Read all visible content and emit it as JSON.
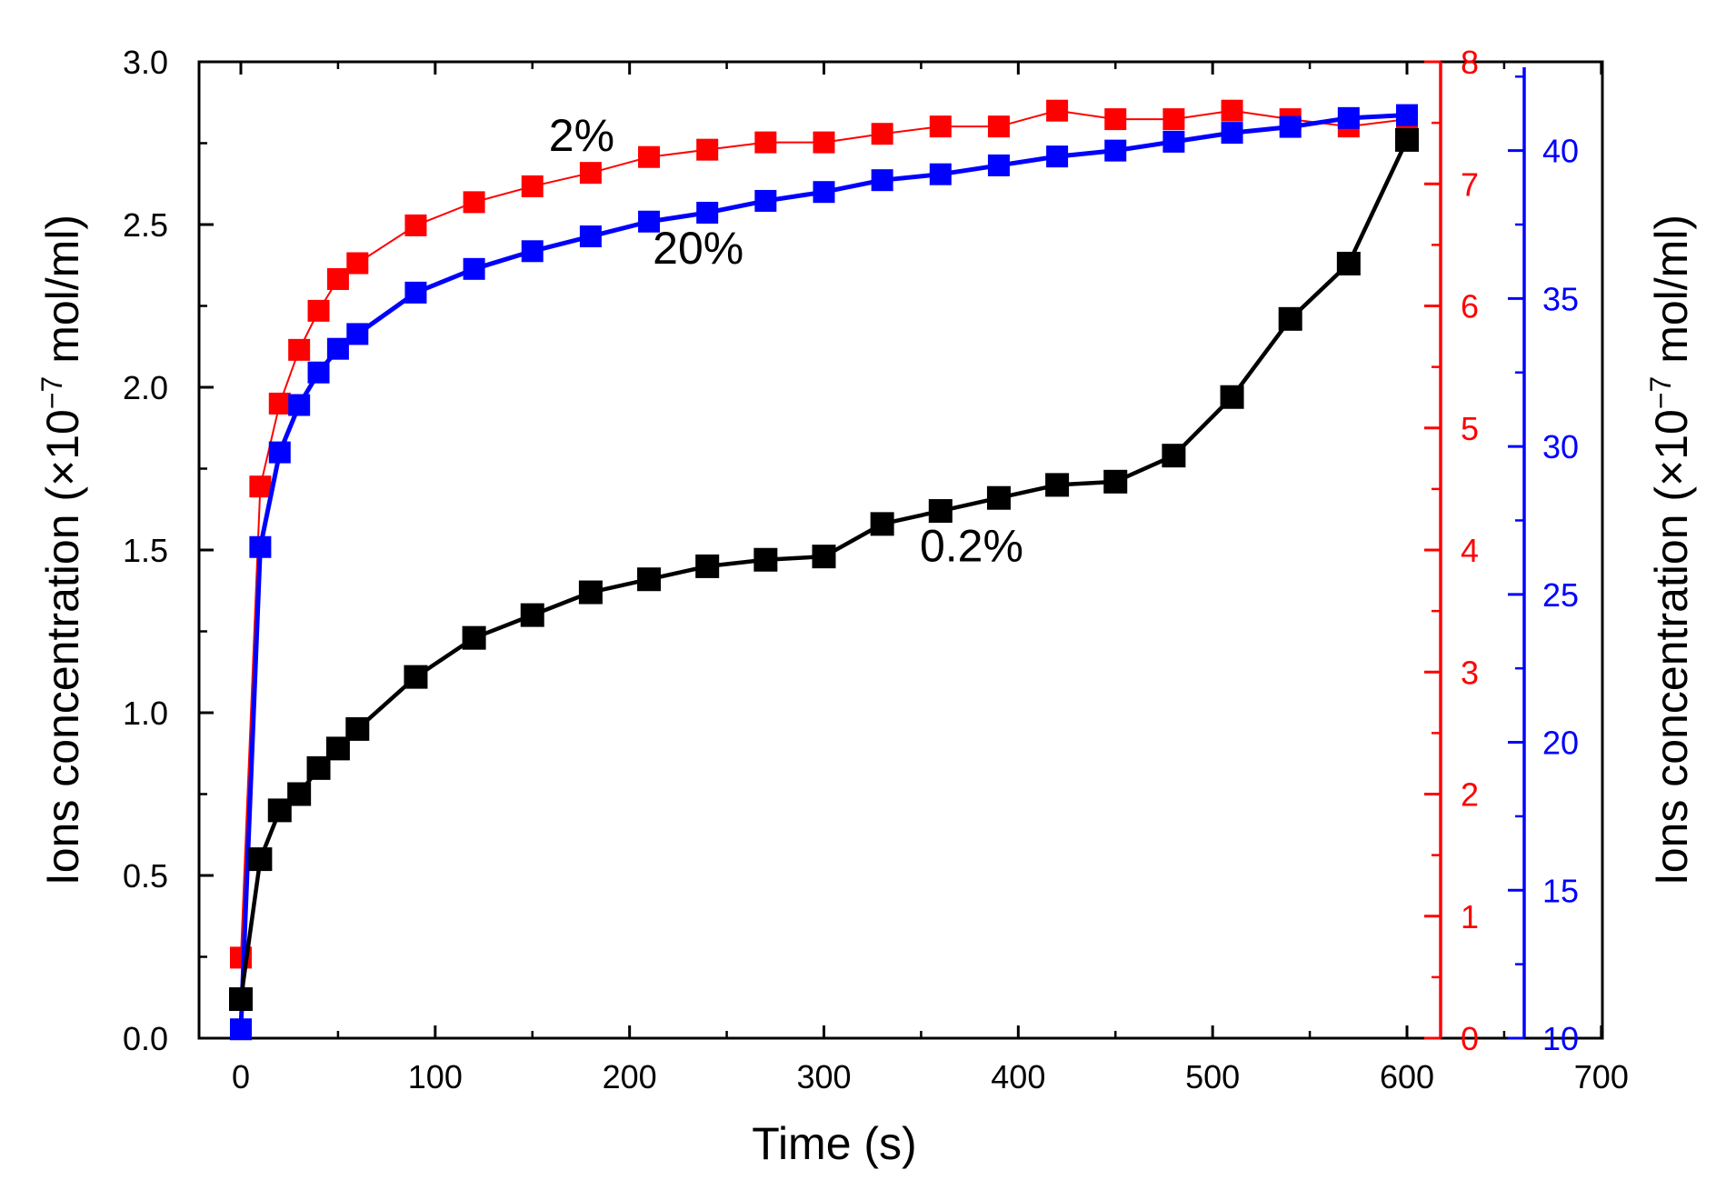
{
  "chart_data": {
    "type": "line",
    "title": "",
    "xlabel": "Time (s)",
    "ylabel_left": {
      "main": "Ions concentration (×10",
      "sup": "−7",
      "tail": " mol/ml)"
    },
    "ylabel_right": {
      "main": "Ions concentration (×10",
      "sup": "−7",
      "tail": " mol/ml)"
    },
    "xlim": [
      -30,
      700
    ],
    "x_ticks": [
      0,
      100,
      200,
      300,
      400,
      500,
      600,
      700
    ],
    "y_axes": {
      "left": {
        "ylim": [
          0,
          3.0
        ],
        "ticks": [
          0.0,
          0.5,
          1.0,
          1.5,
          2.0,
          2.5,
          3.0
        ],
        "tick_labels": [
          "0.0",
          "0.5",
          "1.0",
          "1.5",
          "2.0",
          "2.5",
          "3.0"
        ],
        "color": "#000000"
      },
      "red": {
        "ylim": [
          0,
          8
        ],
        "ticks": [
          0,
          1,
          2,
          3,
          4,
          5,
          6,
          7,
          8
        ],
        "tick_labels": [
          "0",
          "1",
          "2",
          "3",
          "4",
          "5",
          "6",
          "7",
          "8"
        ],
        "color": "#ff0000"
      },
      "blue": {
        "ylim": [
          10,
          43
        ],
        "ticks": [
          10,
          15,
          20,
          25,
          30,
          35,
          40
        ],
        "tick_labels": [
          "10",
          "15",
          "20",
          "25",
          "30",
          "35",
          "40"
        ],
        "color": "#0000ff"
      }
    },
    "x": [
      0,
      10,
      20,
      30,
      40,
      50,
      60,
      90,
      120,
      150,
      180,
      210,
      240,
      270,
      300,
      330,
      360,
      390,
      420,
      450,
      480,
      510,
      540,
      570,
      600
    ],
    "series": [
      {
        "name": "0.2%",
        "axis": "left",
        "color": "#000000",
        "values": [
          0.12,
          0.55,
          0.7,
          0.75,
          0.83,
          0.89,
          0.95,
          1.11,
          1.23,
          1.3,
          1.37,
          1.41,
          1.45,
          1.47,
          1.48,
          1.58,
          1.62,
          1.66,
          1.7,
          1.71,
          1.79,
          1.97,
          2.21,
          2.38,
          2.76
        ]
      },
      {
        "name": "2%",
        "axis": "red",
        "color": "#ff0000",
        "values": [
          0.66,
          4.52,
          5.2,
          5.64,
          5.96,
          6.22,
          6.35,
          6.66,
          6.85,
          6.98,
          7.09,
          7.22,
          7.28,
          7.34,
          7.34,
          7.41,
          7.47,
          7.47,
          7.6,
          7.53,
          7.53,
          7.6,
          7.53,
          7.47,
          7.53
        ]
      },
      {
        "name": "20%",
        "axis": "blue",
        "color": "#0000ff",
        "values": [
          10.3,
          26.6,
          29.8,
          31.4,
          32.5,
          33.3,
          33.8,
          35.2,
          36.0,
          36.6,
          37.1,
          37.6,
          37.9,
          38.3,
          38.6,
          39.0,
          39.2,
          39.5,
          39.8,
          40.0,
          40.3,
          40.6,
          40.8,
          41.1,
          41.2
        ]
      }
    ],
    "annotations": [
      {
        "text": "2%",
        "series": "2%",
        "near_x": 170
      },
      {
        "text": "20%",
        "series": "20%",
        "near_x": 230
      },
      {
        "text": "0.2%",
        "series": "0.2%",
        "near_x": 400
      }
    ],
    "grid": false,
    "legend": "none"
  }
}
